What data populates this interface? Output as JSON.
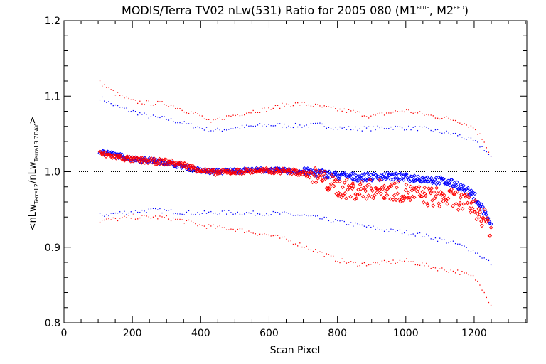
{
  "chart_data": {
    "type": "scatter",
    "title_main": "MODIS/Terra TV02 nLw(531) Ratio for 2005 080 (M1",
    "title_sup1": "BLUE",
    "title_mid": ", M2",
    "title_sup2": "RED",
    "title_end": ")",
    "xlabel": "Scan Pixel",
    "ylabel_parts": {
      "a": "<nLw",
      "a_sub": "TerraL2",
      "b": "/nLw",
      "b_sub": "TerraL3:7DAY",
      "c": ">"
    },
    "xlim": [
      0,
      1354
    ],
    "ylim": [
      0.8,
      1.2
    ],
    "x_ticks": [
      {
        "value": 0,
        "label": "0"
      },
      {
        "value": 200,
        "label": "200"
      },
      {
        "value": 400,
        "label": "400"
      },
      {
        "value": 600,
        "label": "600"
      },
      {
        "value": 800,
        "label": "800"
      },
      {
        "value": 1000,
        "label": "1000"
      },
      {
        "value": 1200,
        "label": "1200"
      }
    ],
    "y_ticks": [
      {
        "value": 0.8,
        "label": "0.8"
      },
      {
        "value": 0.9,
        "label": "0.9"
      },
      {
        "value": 1.0,
        "label": "1.0"
      },
      {
        "value": 1.1,
        "label": "1.1"
      },
      {
        "value": 1.2,
        "label": "1.2"
      }
    ],
    "reference_line": 1.0,
    "series": [
      {
        "color": "#0000ff",
        "marker": "diamond",
        "mean": {
          "x": [
            105,
            150,
            200,
            250,
            300,
            350,
            400,
            430,
            450,
            500,
            550,
            600,
            650,
            700,
            750,
            800,
            850,
            900,
            950,
            1000,
            1050,
            1100,
            1150,
            1200,
            1230,
            1250
          ],
          "y": [
            1.027,
            1.022,
            1.017,
            1.015,
            1.012,
            1.007,
            1.001,
            1.0,
            1.0,
            1.001,
            1.002,
            1.002,
            1.001,
            1.0,
            0.998,
            0.995,
            0.993,
            0.993,
            0.994,
            0.992,
            0.991,
            0.988,
            0.983,
            0.968,
            0.947,
            0.93
          ]
        },
        "upper": {
          "x": [
            105,
            150,
            200,
            250,
            300,
            350,
            400,
            430,
            450,
            500,
            550,
            600,
            650,
            700,
            750,
            800,
            850,
            900,
            950,
            1000,
            1050,
            1100,
            1150,
            1200,
            1230,
            1250
          ],
          "y": [
            1.098,
            1.087,
            1.08,
            1.073,
            1.07,
            1.064,
            1.058,
            1.055,
            1.055,
            1.058,
            1.06,
            1.062,
            1.061,
            1.061,
            1.062,
            1.058,
            1.057,
            1.057,
            1.059,
            1.058,
            1.057,
            1.053,
            1.049,
            1.04,
            1.03,
            1.018
          ]
        },
        "lower": {
          "x": [
            105,
            150,
            200,
            250,
            300,
            350,
            400,
            450,
            500,
            550,
            600,
            650,
            700,
            750,
            800,
            850,
            900,
            950,
            1000,
            1050,
            1100,
            1150,
            1200,
            1230,
            1250
          ],
          "y": [
            0.942,
            0.945,
            0.947,
            0.949,
            0.948,
            0.946,
            0.945,
            0.946,
            0.946,
            0.945,
            0.945,
            0.944,
            0.942,
            0.938,
            0.934,
            0.93,
            0.926,
            0.922,
            0.92,
            0.916,
            0.91,
            0.904,
            0.895,
            0.885,
            0.878
          ]
        }
      },
      {
        "color": "#ff0000",
        "marker": "diamond",
        "mean": {
          "x": [
            105,
            150,
            200,
            250,
            300,
            350,
            400,
            430,
            450,
            500,
            550,
            600,
            650,
            700,
            750,
            780,
            800,
            850,
            900,
            950,
            1000,
            1050,
            1100,
            1150,
            1200,
            1230,
            1250
          ],
          "y": [
            1.024,
            1.02,
            1.016,
            1.014,
            1.013,
            1.009,
            1.002,
            0.999,
            0.999,
            1.0,
            1.001,
            1.001,
            1.001,
            0.998,
            0.992,
            0.984,
            0.979,
            0.975,
            0.977,
            0.976,
            0.972,
            0.968,
            0.966,
            0.963,
            0.953,
            0.938,
            0.922
          ]
        },
        "upper": {
          "x": [
            105,
            150,
            200,
            250,
            300,
            350,
            400,
            430,
            450,
            500,
            550,
            600,
            650,
            700,
            750,
            800,
            850,
            900,
            950,
            1000,
            1050,
            1100,
            1150,
            1200,
            1230,
            1250
          ],
          "y": [
            1.118,
            1.104,
            1.093,
            1.091,
            1.09,
            1.082,
            1.074,
            1.064,
            1.07,
            1.075,
            1.08,
            1.083,
            1.089,
            1.09,
            1.086,
            1.082,
            1.079,
            1.073,
            1.078,
            1.081,
            1.076,
            1.072,
            1.068,
            1.058,
            1.04,
            1.02
          ]
        },
        "lower": {
          "x": [
            105,
            150,
            200,
            250,
            300,
            350,
            400,
            450,
            500,
            550,
            600,
            650,
            700,
            750,
            800,
            850,
            900,
            950,
            1000,
            1050,
            1100,
            1150,
            1200,
            1230,
            1250
          ],
          "y": [
            0.935,
            0.937,
            0.94,
            0.94,
            0.939,
            0.935,
            0.929,
            0.926,
            0.924,
            0.92,
            0.916,
            0.91,
            0.902,
            0.893,
            0.883,
            0.878,
            0.878,
            0.88,
            0.882,
            0.877,
            0.871,
            0.868,
            0.86,
            0.842,
            0.822
          ]
        }
      }
    ]
  }
}
